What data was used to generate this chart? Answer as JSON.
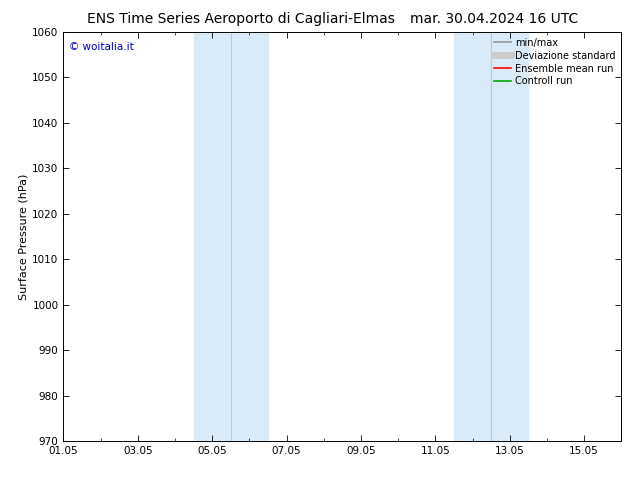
{
  "title_left": "ENS Time Series Aeroporto di Cagliari-Elmas",
  "title_right": "mar. 30.04.2024 16 UTC",
  "ylabel": "Surface Pressure (hPa)",
  "ylim": [
    970,
    1060
  ],
  "yticks": [
    970,
    980,
    990,
    1000,
    1010,
    1020,
    1030,
    1040,
    1050,
    1060
  ],
  "xtick_labels": [
    "01.05",
    "03.05",
    "05.05",
    "07.05",
    "09.05",
    "11.05",
    "13.05",
    "15.05"
  ],
  "xtick_positions_days": [
    0,
    2,
    4,
    6,
    8,
    10,
    12,
    14
  ],
  "total_days": 15,
  "shaded_bands": [
    {
      "x_start_day": 3.0,
      "x_end_day": 4.0,
      "has_divider": 3.5
    },
    {
      "x_start_day": 4.0,
      "x_end_day": 6.0,
      "has_divider": 5.0
    },
    {
      "x_start_day": 10.0,
      "x_end_day": 11.0,
      "has_divider": 10.5
    },
    {
      "x_start_day": 11.0,
      "x_end_day": 13.0,
      "has_divider": 12.0
    }
  ],
  "shade_color": "#daeaf6",
  "shade_divider_color": "#b0cce0",
  "watermark_text": "© woitalia.it",
  "watermark_color": "#0000cc",
  "legend_entries": [
    {
      "label": "min/max",
      "color": "#999999",
      "lw": 1.2
    },
    {
      "label": "Deviazione standard",
      "color": "#cccccc",
      "lw": 5
    },
    {
      "label": "Ensemble mean run",
      "color": "#ff0000",
      "lw": 1.2
    },
    {
      "label": "Controll run",
      "color": "#00aa00",
      "lw": 1.2
    }
  ],
  "title_fontsize": 10,
  "axis_label_fontsize": 8,
  "tick_fontsize": 7.5,
  "legend_fontsize": 7,
  "bg_color": "#ffffff",
  "spine_color": "#000000"
}
